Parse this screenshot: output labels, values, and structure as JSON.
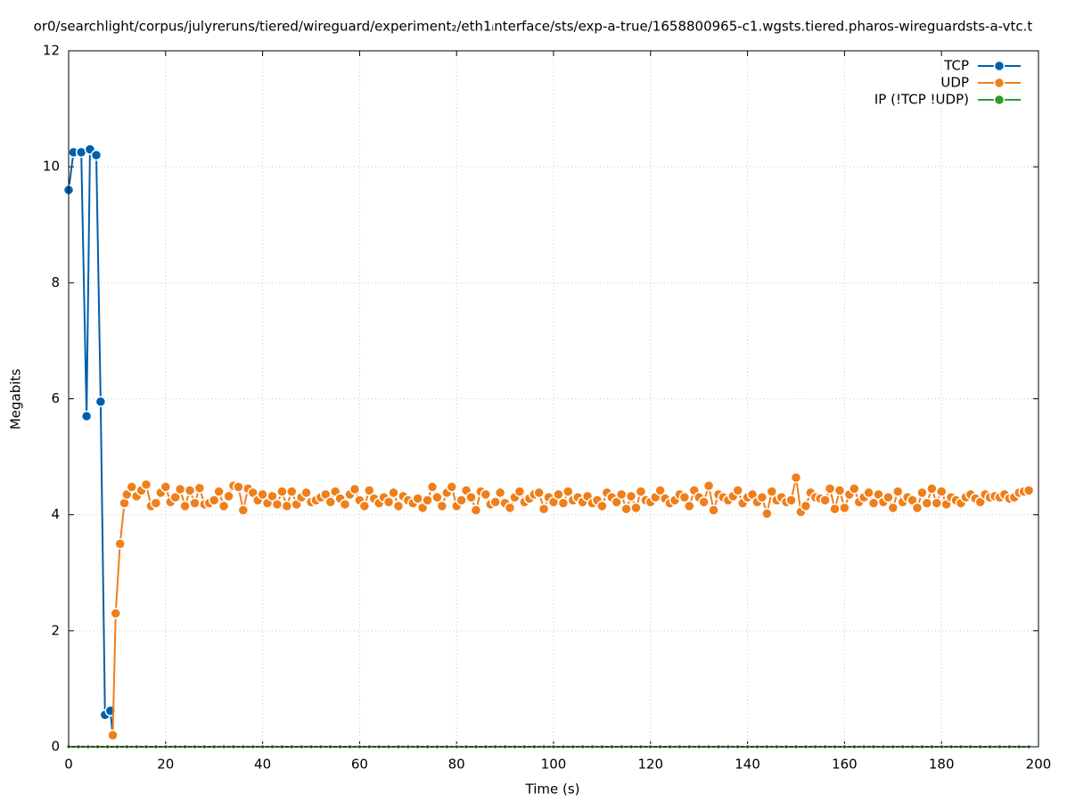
{
  "chart_data": {
    "type": "line",
    "title": "or0/searchlight/corpus/julyreruns/tiered/wireguard/experiment₂/eth1ᵢnterface/sts/exp-a-true/1658800965-c1.wgsts.tiered.pharos-wireguardsts-a-vtc.t",
    "x_label": "Time (s)",
    "y_label": "Megabits",
    "xlim": [
      0,
      200
    ],
    "xticks": [
      0,
      20,
      40,
      60,
      80,
      100,
      120,
      140,
      160,
      180,
      200
    ],
    "ylim": [
      0,
      12
    ],
    "yticks": [
      0,
      2,
      4,
      6,
      8,
      10,
      12
    ],
    "grid": true,
    "legend": "top-right",
    "series": [
      {
        "name": "TCP",
        "color": "#0060ad",
        "x": [
          0,
          1,
          2.6,
          3.7,
          4.4,
          5.7,
          6.6,
          7.5,
          8.6,
          9.1
        ],
        "values": [
          9.6,
          10.25,
          10.25,
          5.7,
          10.3,
          10.2,
          5.95,
          0.55,
          0.62,
          0.2
        ]
      },
      {
        "name": "UDP",
        "color": "#ef7f1a",
        "x": [
          9.1,
          9.7,
          10.6,
          11.5,
          12,
          13,
          14,
          15,
          16,
          17,
          18,
          19,
          20,
          21,
          22,
          23,
          24,
          25,
          26,
          27,
          28,
          29,
          30,
          31,
          32,
          33,
          34,
          35,
          36,
          37,
          38,
          39,
          40,
          41,
          42,
          43,
          44,
          45,
          46,
          47,
          48,
          49,
          50,
          51,
          52,
          53,
          54,
          55,
          56,
          57,
          58,
          59,
          60,
          61,
          62,
          63,
          64,
          65,
          66,
          67,
          68,
          69,
          70,
          71,
          72,
          73,
          74,
          75,
          76,
          77,
          78,
          79,
          80,
          81,
          82,
          83,
          84,
          85,
          86,
          87,
          88,
          89,
          90,
          91,
          92,
          93,
          94,
          95,
          96,
          97,
          98,
          99,
          100,
          101,
          102,
          103,
          104,
          105,
          106,
          107,
          108,
          109,
          110,
          111,
          112,
          113,
          114,
          115,
          116,
          117,
          118,
          119,
          120,
          121,
          122,
          123,
          124,
          125,
          126,
          127,
          128,
          129,
          130,
          131,
          132,
          133,
          134,
          135,
          136,
          137,
          138,
          139,
          140,
          141,
          142,
          143,
          144,
          145,
          146,
          147,
          148,
          149,
          150,
          151,
          152,
          153,
          154,
          155,
          156,
          157,
          158,
          159,
          160,
          161,
          162,
          163,
          164,
          165,
          166,
          167,
          168,
          169,
          170,
          171,
          172,
          173,
          174,
          175,
          176,
          177,
          178,
          179,
          180,
          181,
          182,
          183,
          184,
          185,
          186,
          187,
          188,
          189,
          190,
          191,
          192,
          193,
          194,
          195,
          196,
          197,
          198
        ],
        "values": [
          0.2,
          2.3,
          3.5,
          4.2,
          4.35,
          4.48,
          4.32,
          4.42,
          4.52,
          4.15,
          4.2,
          4.38,
          4.48,
          4.22,
          4.3,
          4.44,
          4.15,
          4.42,
          4.2,
          4.46,
          4.18,
          4.2,
          4.25,
          4.4,
          4.15,
          4.32,
          4.5,
          4.48,
          4.08,
          4.45,
          4.38,
          4.25,
          4.35,
          4.2,
          4.32,
          4.18,
          4.4,
          4.15,
          4.4,
          4.18,
          4.3,
          4.38,
          4.22,
          4.25,
          4.3,
          4.35,
          4.22,
          4.4,
          4.28,
          4.18,
          4.35,
          4.44,
          4.25,
          4.15,
          4.42,
          4.28,
          4.2,
          4.3,
          4.22,
          4.38,
          4.15,
          4.32,
          4.25,
          4.2,
          4.28,
          4.12,
          4.25,
          4.48,
          4.3,
          4.15,
          4.38,
          4.48,
          4.15,
          4.25,
          4.42,
          4.3,
          4.08,
          4.4,
          4.35,
          4.18,
          4.22,
          4.38,
          4.2,
          4.12,
          4.3,
          4.4,
          4.22,
          4.28,
          4.35,
          4.38,
          4.1,
          4.3,
          4.22,
          4.35,
          4.2,
          4.4,
          4.25,
          4.3,
          4.22,
          4.32,
          4.2,
          4.25,
          4.15,
          4.38,
          4.3,
          4.22,
          4.35,
          4.1,
          4.32,
          4.12,
          4.4,
          4.25,
          4.22,
          4.3,
          4.42,
          4.28,
          4.2,
          4.25,
          4.35,
          4.3,
          4.15,
          4.42,
          4.3,
          4.22,
          4.5,
          4.08,
          4.35,
          4.3,
          4.25,
          4.32,
          4.42,
          4.2,
          4.3,
          4.35,
          4.22,
          4.3,
          4.02,
          4.4,
          4.25,
          4.3,
          4.22,
          4.25,
          4.64,
          4.05,
          4.15,
          4.38,
          4.3,
          4.28,
          4.25,
          4.45,
          4.1,
          4.42,
          4.12,
          4.35,
          4.45,
          4.22,
          4.3,
          4.38,
          4.2,
          4.35,
          4.22,
          4.3,
          4.12,
          4.4,
          4.22,
          4.3,
          4.25,
          4.12,
          4.38,
          4.2,
          4.45,
          4.2,
          4.4,
          4.18,
          4.3,
          4.25,
          4.2,
          4.3,
          4.35,
          4.28,
          4.22,
          4.35,
          4.3,
          4.32,
          4.3,
          4.35,
          4.28,
          4.3,
          4.38,
          4.4,
          4.42
        ]
      },
      {
        "name": "IP (!TCP  !UDP)",
        "color": "#2f9a2f",
        "x": [
          0,
          2,
          4,
          6,
          8,
          10,
          12,
          14,
          16,
          18,
          20,
          22,
          24,
          26,
          28,
          30,
          32,
          34,
          36,
          38,
          40,
          42,
          44,
          46,
          48,
          50,
          52,
          54,
          56,
          58,
          60,
          62,
          64,
          66,
          68,
          70,
          72,
          74,
          76,
          78,
          80,
          82,
          84,
          86,
          88,
          90,
          92,
          94,
          96,
          98,
          100,
          102,
          104,
          106,
          108,
          110,
          112,
          114,
          116,
          118,
          120,
          122,
          124,
          126,
          128,
          130,
          132,
          134,
          136,
          138,
          140,
          142,
          144,
          146,
          148,
          150,
          152,
          154,
          156,
          158,
          160,
          162,
          164,
          166,
          168,
          170,
          172,
          174,
          176,
          178,
          180,
          182,
          184,
          186,
          188,
          190,
          192,
          194,
          196,
          198
        ],
        "values": [
          0,
          0,
          0,
          0,
          0,
          0,
          0,
          0,
          0,
          0,
          0,
          0,
          0,
          0,
          0,
          0,
          0,
          0,
          0,
          0,
          0,
          0,
          0,
          0,
          0,
          0,
          0,
          0,
          0,
          0,
          0,
          0,
          0,
          0,
          0,
          0,
          0,
          0,
          0,
          0,
          0,
          0,
          0,
          0,
          0,
          0,
          0,
          0,
          0,
          0,
          0,
          0,
          0,
          0,
          0,
          0,
          0,
          0,
          0,
          0,
          0,
          0,
          0,
          0,
          0,
          0,
          0,
          0,
          0,
          0,
          0,
          0,
          0,
          0,
          0,
          0,
          0,
          0,
          0,
          0,
          0,
          0,
          0,
          0,
          0,
          0,
          0,
          0,
          0,
          0,
          0,
          0,
          0,
          0,
          0,
          0,
          0,
          0,
          0,
          0
        ]
      }
    ]
  }
}
